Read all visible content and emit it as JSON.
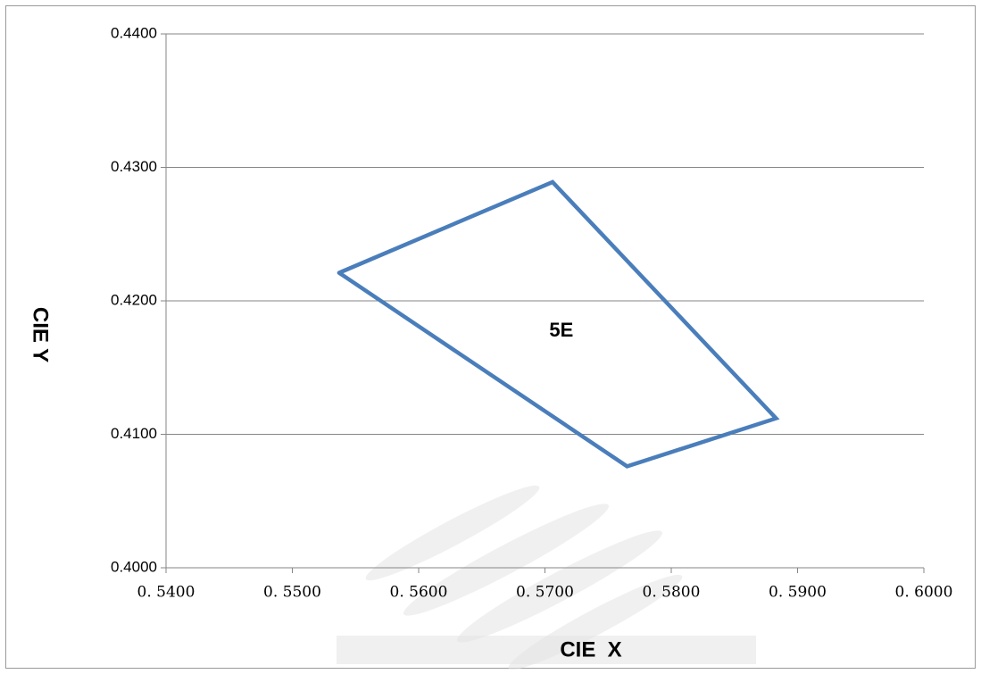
{
  "chart_data": {
    "type": "line",
    "title": "",
    "xlabel": "CIE  X",
    "ylabel": "CIE  Y",
    "xlim": [
      0.54,
      0.6
    ],
    "ylim": [
      0.4,
      0.44
    ],
    "x_ticks": [
      "0. 5400",
      "0. 5500",
      "0. 5600",
      "0. 5700",
      "0. 5800",
      "0. 5900",
      "0. 6000"
    ],
    "x_tick_values": [
      0.54,
      0.55,
      0.56,
      0.57,
      0.58,
      0.59,
      0.6
    ],
    "y_ticks": [
      "0.4000",
      "0.4100",
      "0.4200",
      "0.4300",
      "0.4400"
    ],
    "y_tick_values": [
      0.4,
      0.41,
      0.42,
      0.43,
      0.44
    ],
    "grid": {
      "horizontal": true,
      "vertical": false
    },
    "legend": "none",
    "series": [
      {
        "closed": true,
        "color": "#4A7EBB",
        "x": [
          0.5537,
          0.5706,
          0.5883,
          0.5765,
          0.5537
        ],
        "y": [
          0.4221,
          0.4289,
          0.4112,
          0.4076,
          0.4221
        ]
      }
    ],
    "annotations": [
      {
        "text": "5E",
        "x": 0.5713,
        "y": 0.4177
      }
    ]
  }
}
